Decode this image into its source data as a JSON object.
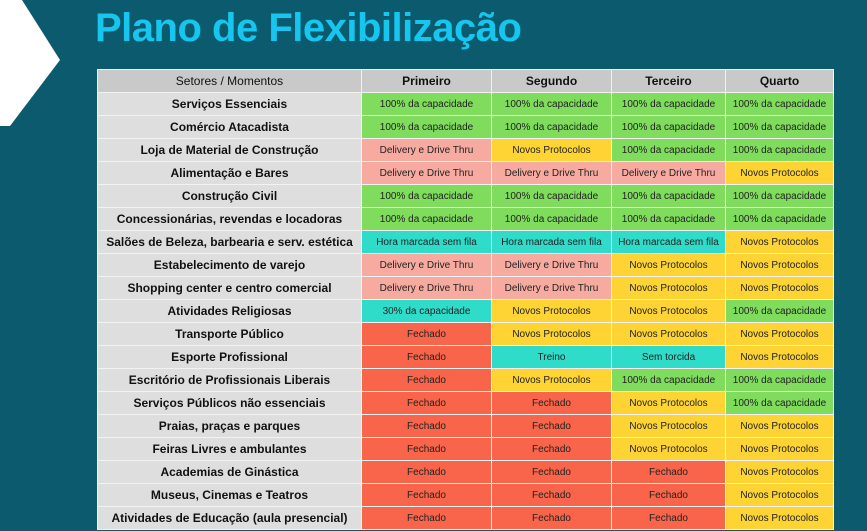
{
  "title": "Plano de Flexibilização",
  "colors": {
    "background": "#0b5a6d",
    "title": "#16c6ef",
    "100% da capacidade": "#7fdc5c",
    "Delivery e Drive Thru": "#f6aaa0",
    "Novos Protocolos": "#fdd433",
    "Hora marcada sem fila": "#2fdcc9",
    "30% da capacidade": "#2fdcc9",
    "Treino": "#2fdcc9",
    "Sem torcida": "#2fdcc9",
    "Fechado": "#f8654a"
  },
  "headers": [
    "Setores / Momentos",
    "Primeiro",
    "Segundo",
    "Terceiro",
    "Quarto"
  ],
  "rows": [
    {
      "sector": "Serviços Essenciais",
      "cells": [
        "100% da capacidade",
        "100% da capacidade",
        "100% da capacidade",
        "100% da capacidade"
      ]
    },
    {
      "sector": "Comércio Atacadista",
      "cells": [
        "100% da capacidade",
        "100% da capacidade",
        "100% da capacidade",
        "100% da capacidade"
      ]
    },
    {
      "sector": "Loja de Material de Construção",
      "cells": [
        "Delivery e Drive Thru",
        "Novos Protocolos",
        "100% da capacidade",
        "100% da capacidade"
      ]
    },
    {
      "sector": "Alimentação e Bares",
      "cells": [
        "Delivery e Drive Thru",
        "Delivery e Drive Thru",
        "Delivery e Drive Thru",
        "Novos Protocolos"
      ]
    },
    {
      "sector": "Construção Civil",
      "cells": [
        "100% da capacidade",
        "100% da capacidade",
        "100% da capacidade",
        "100% da capacidade"
      ]
    },
    {
      "sector": "Concessionárias, revendas e locadoras",
      "cells": [
        "100% da capacidade",
        "100% da capacidade",
        "100% da capacidade",
        "100% da capacidade"
      ]
    },
    {
      "sector": "Salões de Beleza, barbearia e serv. estética",
      "cells": [
        "Hora marcada sem fila",
        "Hora marcada sem fila",
        "Hora marcada sem fila",
        "Novos Protocolos"
      ]
    },
    {
      "sector": "Estabelecimento de varejo",
      "cells": [
        "Delivery e Drive Thru",
        "Delivery e Drive Thru",
        "Novos Protocolos",
        "Novos Protocolos"
      ]
    },
    {
      "sector": "Shopping center e centro comercial",
      "cells": [
        "Delivery e Drive Thru",
        "Delivery e Drive Thru",
        "Novos Protocolos",
        "Novos Protocolos"
      ]
    },
    {
      "sector": "Atividades Religiosas",
      "cells": [
        "30% da capacidade",
        "Novos Protocolos",
        "Novos Protocolos",
        "100% da capacidade"
      ]
    },
    {
      "sector": "Transporte Público",
      "cells": [
        "Fechado",
        "Novos Protocolos",
        "Novos Protocolos",
        "Novos Protocolos"
      ]
    },
    {
      "sector": "Esporte Profissional",
      "cells": [
        "Fechado",
        "Treino",
        "Sem torcida",
        "Novos Protocolos"
      ]
    },
    {
      "sector": "Escritório de Profissionais Liberais",
      "cells": [
        "Fechado",
        "Novos Protocolos",
        "100% da capacidade",
        "100% da capacidade"
      ]
    },
    {
      "sector": "Serviços Públicos não essenciais",
      "cells": [
        "Fechado",
        "Fechado",
        "Novos Protocolos",
        "100% da capacidade"
      ]
    },
    {
      "sector": "Praias, praças e parques",
      "cells": [
        "Fechado",
        "Fechado",
        "Novos Protocolos",
        "Novos Protocolos"
      ]
    },
    {
      "sector": "Feiras Livres e ambulantes",
      "cells": [
        "Fechado",
        "Fechado",
        "Novos Protocolos",
        "Novos Protocolos"
      ]
    },
    {
      "sector": "Academias de Ginástica",
      "cells": [
        "Fechado",
        "Fechado",
        "Fechado",
        "Novos Protocolos"
      ]
    },
    {
      "sector": "Museus, Cinemas e Teatros",
      "cells": [
        "Fechado",
        "Fechado",
        "Fechado",
        "Novos Protocolos"
      ]
    },
    {
      "sector": "Atividades de Educação (aula presencial)",
      "cells": [
        "Fechado",
        "Fechado",
        "Fechado",
        "Novos Protocolos"
      ]
    }
  ]
}
